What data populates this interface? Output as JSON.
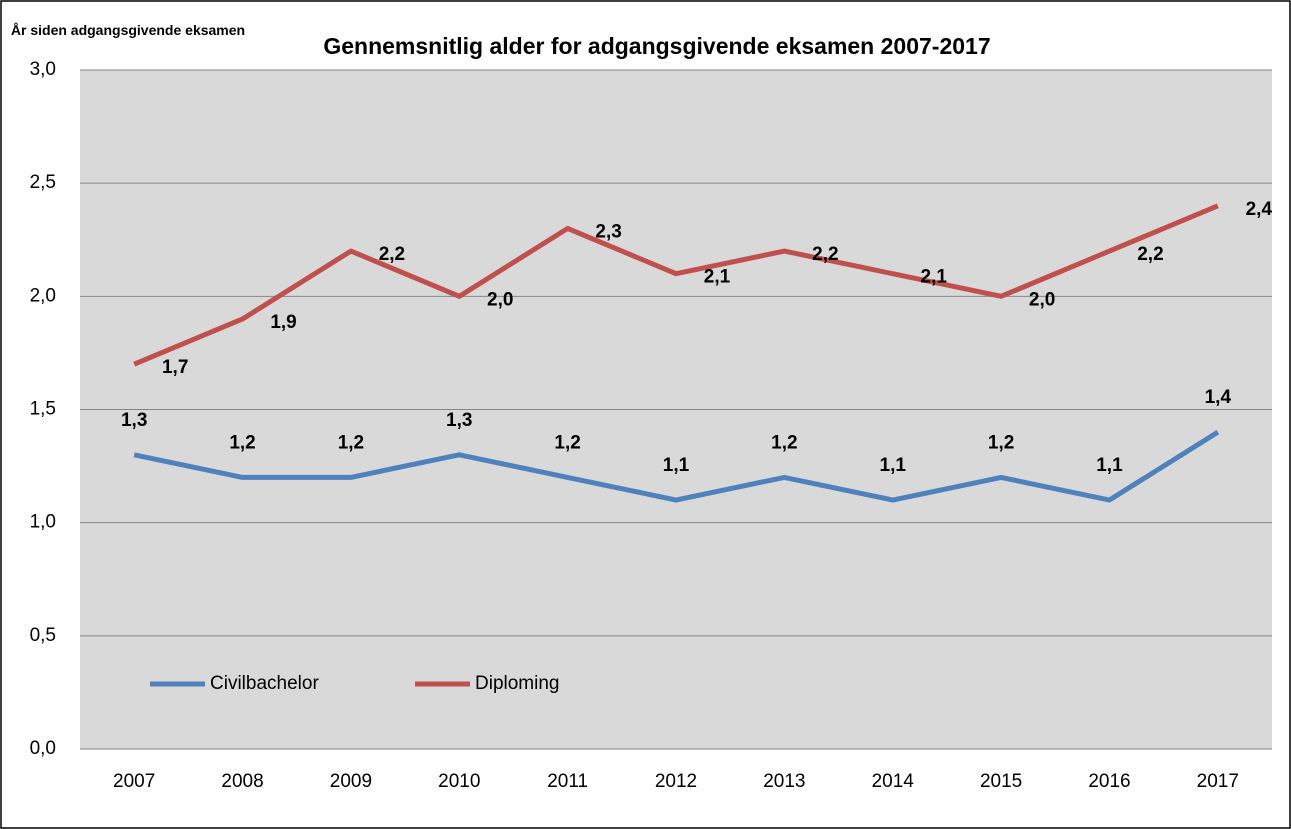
{
  "chart_data": {
    "type": "line",
    "title": "Gennemsnitlig alder for adgangsgivende eksamen 2007-2017",
    "y_label": "År siden adgangsgivende eksamen",
    "categories": [
      "2007",
      "2008",
      "2009",
      "2010",
      "2011",
      "2012",
      "2013",
      "2014",
      "2015",
      "2016",
      "2017"
    ],
    "series": [
      {
        "name": "Civilbachelor",
        "color": "#4f81bd",
        "values": [
          1.3,
          1.2,
          1.2,
          1.3,
          1.2,
          1.1,
          1.2,
          1.1,
          1.2,
          1.1,
          1.4
        ],
        "value_labels": [
          "1,3",
          "1,2",
          "1,2",
          "1,3",
          "1,2",
          "1,1",
          "1,2",
          "1,1",
          "1,2",
          "1,1",
          "1,4"
        ]
      },
      {
        "name": "Diploming",
        "color": "#c0504d",
        "values": [
          1.7,
          1.9,
          2.2,
          2.0,
          2.3,
          2.1,
          2.2,
          2.1,
          2.0,
          2.2,
          2.4
        ],
        "value_labels": [
          "1,7",
          "1,9",
          "2,2",
          "2,0",
          "2,3",
          "2,1",
          "2,2",
          "2,1",
          "2,0",
          "2,2",
          "2,4"
        ]
      }
    ],
    "ylim": [
      0,
      3
    ],
    "yticks": [
      {
        "value": 0,
        "label": "0,0"
      },
      {
        "value": 0.5,
        "label": "0,5"
      },
      {
        "value": 1,
        "label": "1,0"
      },
      {
        "value": 1.5,
        "label": "1,5"
      },
      {
        "value": 2,
        "label": "2,0"
      },
      {
        "value": 2.5,
        "label": "2,5"
      },
      {
        "value": 3,
        "label": "3,0"
      }
    ],
    "grid": true,
    "legend": "lower left"
  }
}
